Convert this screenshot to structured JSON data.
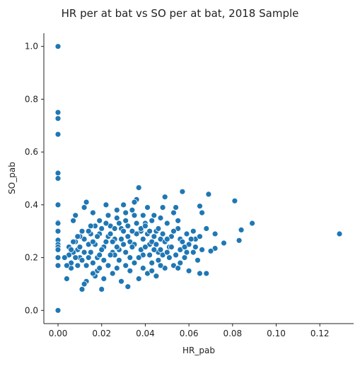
{
  "chart_data": {
    "type": "scatter",
    "title": "HR per at bat vs SO per at bat, 2018 Sample",
    "xlabel": "HR_pab",
    "ylabel": "SO_pab",
    "xlim": [
      -0.0065,
      0.1355
    ],
    "ylim": [
      -0.05,
      1.05
    ],
    "x_ticks": [
      0.0,
      0.02,
      0.04,
      0.06,
      0.08,
      0.1,
      0.12
    ],
    "x_tick_labels": [
      "0.00",
      "0.02",
      "0.04",
      "0.06",
      "0.08",
      "0.10",
      "0.12"
    ],
    "y_ticks": [
      0.0,
      0.2,
      0.4,
      0.6,
      0.8,
      1.0
    ],
    "y_tick_labels": [
      "0.0",
      "0.2",
      "0.4",
      "0.6",
      "0.8",
      "1.0"
    ],
    "grid": false,
    "legend": "none",
    "marker_color": "#1f77b4",
    "marker_edge_color": "#ffffff",
    "points": [
      [
        0.0,
        1.0
      ],
      [
        0.0,
        0.75
      ],
      [
        0.0,
        0.727
      ],
      [
        0.0,
        0.667
      ],
      [
        0.0,
        0.52
      ],
      [
        0.0,
        0.5
      ],
      [
        0.0,
        0.4
      ],
      [
        0.0,
        0.333
      ],
      [
        0.0,
        0.33
      ],
      [
        0.0,
        0.3
      ],
      [
        0.0,
        0.266
      ],
      [
        0.0,
        0.25
      ],
      [
        0.0,
        0.24
      ],
      [
        0.0,
        0.23
      ],
      [
        0.0,
        0.2
      ],
      [
        0.0,
        0.17
      ],
      [
        0.0,
        0.0
      ],
      [
        0.129,
        0.29
      ],
      [
        0.089,
        0.33
      ],
      [
        0.084,
        0.305
      ],
      [
        0.083,
        0.265
      ],
      [
        0.081,
        0.415
      ],
      [
        0.076,
        0.255
      ],
      [
        0.072,
        0.29
      ],
      [
        0.072,
        0.235
      ],
      [
        0.07,
        0.225
      ],
      [
        0.069,
        0.44
      ],
      [
        0.068,
        0.31
      ],
      [
        0.068,
        0.14
      ],
      [
        0.065,
        0.14
      ],
      [
        0.066,
        0.37
      ],
      [
        0.065,
        0.395
      ],
      [
        0.063,
        0.27
      ],
      [
        0.062,
        0.3
      ],
      [
        0.06,
        0.25
      ],
      [
        0.059,
        0.29
      ],
      [
        0.058,
        0.2
      ],
      [
        0.057,
        0.45
      ],
      [
        0.056,
        0.23
      ],
      [
        0.056,
        0.27
      ],
      [
        0.055,
        0.31
      ],
      [
        0.054,
        0.39
      ],
      [
        0.053,
        0.37
      ],
      [
        0.052,
        0.28
      ],
      [
        0.051,
        0.24
      ],
      [
        0.05,
        0.33
      ],
      [
        0.049,
        0.43
      ],
      [
        0.048,
        0.39
      ],
      [
        0.047,
        0.27
      ],
      [
        0.046,
        0.22
      ],
      [
        0.045,
        0.3
      ],
      [
        0.044,
        0.36
      ],
      [
        0.043,
        0.18
      ],
      [
        0.042,
        0.25
      ],
      [
        0.041,
        0.39
      ],
      [
        0.04,
        0.33
      ],
      [
        0.039,
        0.21
      ],
      [
        0.038,
        0.3
      ],
      [
        0.037,
        0.465
      ],
      [
        0.036,
        0.42
      ],
      [
        0.035,
        0.41
      ],
      [
        0.034,
        0.38
      ],
      [
        0.033,
        0.26
      ],
      [
        0.032,
        0.09
      ],
      [
        0.031,
        0.34
      ],
      [
        0.03,
        0.4
      ],
      [
        0.029,
        0.31
      ],
      [
        0.028,
        0.23
      ],
      [
        0.027,
        0.38
      ],
      [
        0.026,
        0.27
      ],
      [
        0.025,
        0.22
      ],
      [
        0.024,
        0.32
      ],
      [
        0.023,
        0.28
      ],
      [
        0.022,
        0.4
      ],
      [
        0.021,
        0.24
      ],
      [
        0.02,
        0.08
      ],
      [
        0.019,
        0.29
      ],
      [
        0.018,
        0.2
      ],
      [
        0.017,
        0.32
      ],
      [
        0.016,
        0.37
      ],
      [
        0.015,
        0.29
      ],
      [
        0.014,
        0.25
      ],
      [
        0.013,
        0.41
      ],
      [
        0.012,
        0.39
      ],
      [
        0.011,
        0.08
      ],
      [
        0.01,
        0.2
      ],
      [
        0.009,
        0.23
      ],
      [
        0.008,
        0.36
      ],
      [
        0.007,
        0.34
      ],
      [
        0.006,
        0.16
      ],
      [
        0.005,
        0.24
      ],
      [
        0.004,
        0.12
      ],
      [
        0.035,
        0.25
      ],
      [
        0.036,
        0.29
      ],
      [
        0.037,
        0.2
      ],
      [
        0.038,
        0.23
      ],
      [
        0.039,
        0.27
      ],
      [
        0.04,
        0.24
      ],
      [
        0.041,
        0.29
      ],
      [
        0.042,
        0.21
      ],
      [
        0.043,
        0.26
      ],
      [
        0.044,
        0.23
      ],
      [
        0.03,
        0.25
      ],
      [
        0.031,
        0.22
      ],
      [
        0.032,
        0.28
      ],
      [
        0.033,
        0.2
      ],
      [
        0.034,
        0.24
      ],
      [
        0.025,
        0.26
      ],
      [
        0.026,
        0.21
      ],
      [
        0.027,
        0.24
      ],
      [
        0.028,
        0.19
      ],
      [
        0.029,
        0.27
      ],
      [
        0.02,
        0.23
      ],
      [
        0.021,
        0.19
      ],
      [
        0.022,
        0.26
      ],
      [
        0.023,
        0.17
      ],
      [
        0.024,
        0.21
      ],
      [
        0.015,
        0.22
      ],
      [
        0.016,
        0.18
      ],
      [
        0.017,
        0.25
      ],
      [
        0.018,
        0.15
      ],
      [
        0.019,
        0.21
      ],
      [
        0.01,
        0.24
      ],
      [
        0.011,
        0.19
      ],
      [
        0.012,
        0.22
      ],
      [
        0.013,
        0.17
      ],
      [
        0.014,
        0.2
      ],
      [
        0.045,
        0.25
      ],
      [
        0.046,
        0.19
      ],
      [
        0.047,
        0.23
      ],
      [
        0.048,
        0.21
      ],
      [
        0.049,
        0.26
      ],
      [
        0.05,
        0.22
      ],
      [
        0.051,
        0.2
      ],
      [
        0.052,
        0.24
      ],
      [
        0.053,
        0.17
      ],
      [
        0.054,
        0.21
      ],
      [
        0.056,
        0.18
      ],
      [
        0.058,
        0.24
      ],
      [
        0.06,
        0.15
      ],
      [
        0.062,
        0.22
      ],
      [
        0.064,
        0.19
      ],
      [
        0.008,
        0.2
      ],
      [
        0.007,
        0.22
      ],
      [
        0.006,
        0.18
      ],
      [
        0.005,
        0.21
      ],
      [
        0.009,
        0.17
      ],
      [
        0.012,
        0.27
      ],
      [
        0.014,
        0.3
      ],
      [
        0.016,
        0.26
      ],
      [
        0.018,
        0.28
      ],
      [
        0.02,
        0.31
      ],
      [
        0.022,
        0.33
      ],
      [
        0.024,
        0.29
      ],
      [
        0.026,
        0.31
      ],
      [
        0.028,
        0.33
      ],
      [
        0.03,
        0.3
      ],
      [
        0.032,
        0.32
      ],
      [
        0.034,
        0.3
      ],
      [
        0.036,
        0.33
      ],
      [
        0.038,
        0.31
      ],
      [
        0.04,
        0.32
      ],
      [
        0.042,
        0.3
      ],
      [
        0.044,
        0.28
      ],
      [
        0.046,
        0.31
      ],
      [
        0.048,
        0.29
      ],
      [
        0.05,
        0.27
      ],
      [
        0.013,
        0.11
      ],
      [
        0.017,
        0.13
      ],
      [
        0.021,
        0.12
      ],
      [
        0.025,
        0.14
      ],
      [
        0.029,
        0.11
      ],
      [
        0.033,
        0.15
      ],
      [
        0.037,
        0.12
      ],
      [
        0.041,
        0.14
      ],
      [
        0.045,
        0.13
      ],
      [
        0.049,
        0.16
      ],
      [
        0.012,
        0.1
      ],
      [
        0.016,
        0.14
      ],
      [
        0.019,
        0.16
      ],
      [
        0.027,
        0.16
      ],
      [
        0.031,
        0.17
      ],
      [
        0.035,
        0.18
      ],
      [
        0.039,
        0.16
      ],
      [
        0.043,
        0.15
      ],
      [
        0.047,
        0.17
      ],
      [
        0.055,
        0.16
      ],
      [
        0.003,
        0.2
      ],
      [
        0.004,
        0.17
      ],
      [
        0.006,
        0.23
      ],
      [
        0.008,
        0.26
      ],
      [
        0.01,
        0.28
      ],
      [
        0.057,
        0.26
      ],
      [
        0.059,
        0.22
      ],
      [
        0.061,
        0.27
      ],
      [
        0.063,
        0.24
      ],
      [
        0.065,
        0.28
      ],
      [
        0.066,
        0.23
      ],
      [
        0.055,
        0.34
      ],
      [
        0.053,
        0.3
      ],
      [
        0.047,
        0.35
      ],
      [
        0.043,
        0.34
      ],
      [
        0.039,
        0.36
      ],
      [
        0.035,
        0.36
      ],
      [
        0.031,
        0.37
      ],
      [
        0.027,
        0.35
      ],
      [
        0.023,
        0.36
      ],
      [
        0.019,
        0.34
      ],
      [
        0.015,
        0.32
      ],
      [
        0.011,
        0.3
      ],
      [
        0.009,
        0.28
      ],
      [
        0.007,
        0.26
      ]
    ]
  }
}
